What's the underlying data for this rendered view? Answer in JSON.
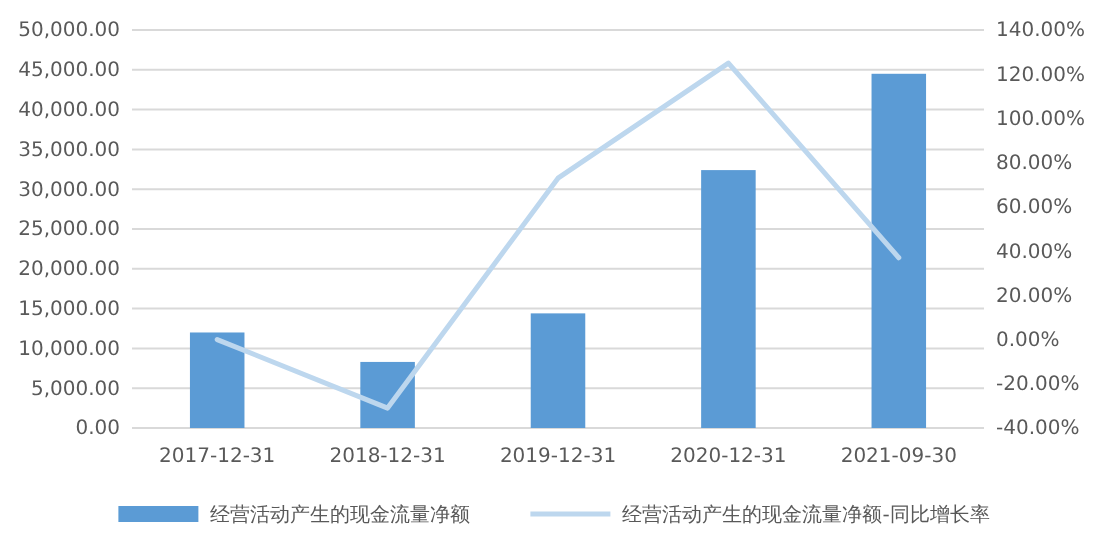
{
  "chart_data": {
    "type": "bar",
    "categories": [
      "2017-12-31",
      "2018-12-31",
      "2019-12-31",
      "2020-12-31",
      "2021-09-30"
    ],
    "series": [
      {
        "name": "经营活动产生的现金流量净额",
        "color": "#5b9bd5",
        "values": [
          12000,
          8300,
          14400,
          32400,
          44500
        ]
      },
      {
        "name": "经营活动产生的现金流量净额-同比增长率",
        "type": "line",
        "axis": "y2",
        "color": "#bdd7ee",
        "values": [
          0,
          -31,
          73,
          125,
          37
        ]
      }
    ],
    "ylim": [
      0,
      50000
    ],
    "yticks": [
      {
        "value": 0,
        "label": "0.00"
      },
      {
        "value": 5000,
        "label": "5,000.00"
      },
      {
        "value": 10000,
        "label": "10,000.00"
      },
      {
        "value": 15000,
        "label": "15,000.00"
      },
      {
        "value": 20000,
        "label": "20,000.00"
      },
      {
        "value": 25000,
        "label": "25,000.00"
      },
      {
        "value": 30000,
        "label": "30,000.00"
      },
      {
        "value": 35000,
        "label": "35,000.00"
      },
      {
        "value": 40000,
        "label": "40,000.00"
      },
      {
        "value": 45000,
        "label": "45,000.00"
      },
      {
        "value": 50000,
        "label": "50,000.00"
      }
    ],
    "y2lim": [
      -40,
      140
    ],
    "y2ticks": [
      {
        "value": -40,
        "label": "-40.00%"
      },
      {
        "value": -20,
        "label": "-20.00%"
      },
      {
        "value": 0,
        "label": "0.00%"
      },
      {
        "value": 20,
        "label": "20.00%"
      },
      {
        "value": 40,
        "label": "40.00%"
      },
      {
        "value": 60,
        "label": "60.00%"
      },
      {
        "value": 80,
        "label": "80.00%"
      },
      {
        "value": 100,
        "label": "100.00%"
      },
      {
        "value": 120,
        "label": "120.00%"
      },
      {
        "value": 140,
        "label": "140.00%"
      }
    ],
    "grid": "y",
    "legend": "bottom",
    "marker": "none",
    "line_style": "solid"
  }
}
